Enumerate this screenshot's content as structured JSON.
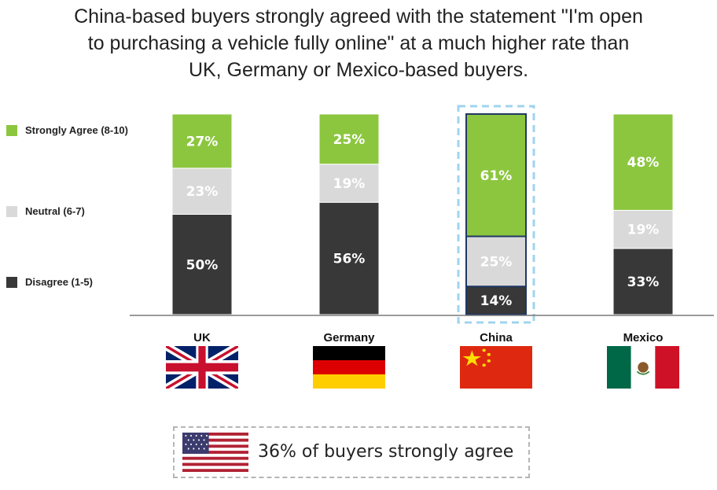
{
  "title_lines": [
    "China-based buyers strongly agreed with the statement \"I'm open",
    "to purchasing a vehicle fully online\" at a much higher rate than",
    "UK, Germany or Mexico-based buyers."
  ],
  "legend": [
    {
      "label": "Strongly Agree (8-10)",
      "color": "#8cc63f"
    },
    {
      "label": "Neutral (6-7)",
      "color": "#d9d9d9"
    },
    {
      "label": "Disagree (1-5)",
      "color": "#383838"
    }
  ],
  "chart_data": {
    "type": "bar",
    "stacked": true,
    "categories": [
      "UK",
      "Germany",
      "China",
      "Mexico"
    ],
    "series": [
      {
        "name": "Disagree (1-5)",
        "values": [
          50,
          56,
          14,
          33
        ],
        "color": "#383838"
      },
      {
        "name": "Neutral (6-7)",
        "values": [
          23,
          19,
          25,
          19
        ],
        "color": "#d9d9d9"
      },
      {
        "name": "Strongly Agree (8-10)",
        "values": [
          27,
          25,
          61,
          48
        ],
        "color": "#8cc63f"
      }
    ],
    "labels": [
      [
        "50%",
        "56%",
        "14%",
        "33%"
      ],
      [
        "23%",
        "19%",
        "25%",
        "19%"
      ],
      [
        "27%",
        "25%",
        "61%",
        "48%"
      ]
    ],
    "highlighted_category": "China",
    "ylim": [
      0,
      100
    ]
  },
  "countries": [
    {
      "name": "UK",
      "flag": "uk-flag"
    },
    {
      "name": "Germany",
      "flag": "germany-flag"
    },
    {
      "name": "China",
      "flag": "china-flag"
    },
    {
      "name": "Mexico",
      "flag": "mexico-flag"
    }
  ],
  "callout": {
    "text": "36% of buyers strongly agree",
    "flag": "usa-flag"
  }
}
